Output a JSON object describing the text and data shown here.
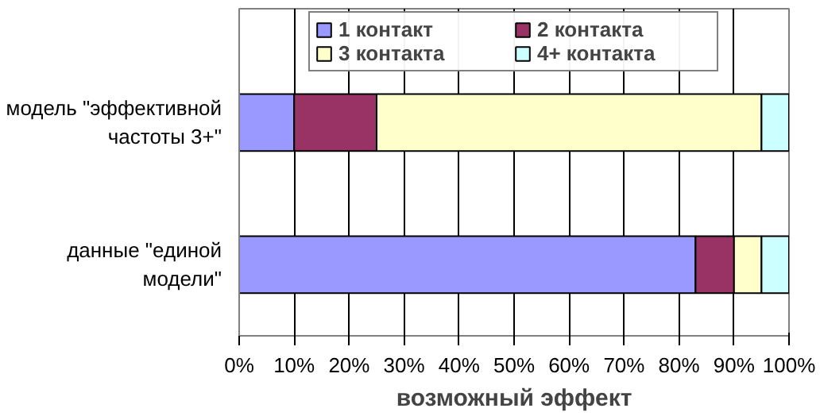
{
  "chart_data": {
    "type": "bar",
    "orientation": "horizontal",
    "stacked": true,
    "categories": [
      "модель \"эффективной частоты 3+\"",
      "данные \"единой модели\""
    ],
    "series": [
      {
        "name": "1 контакт",
        "color": "#9999ff",
        "values": [
          10,
          83
        ]
      },
      {
        "name": "2 контакта",
        "color": "#993366",
        "values": [
          15,
          7
        ]
      },
      {
        "name": "3 контакта",
        "color": "#ffffcc",
        "values": [
          70,
          5
        ]
      },
      {
        "name": "4+ контакта",
        "color": "#ccffff",
        "values": [
          5,
          5
        ]
      }
    ],
    "xlabel": "возможный эффект",
    "xlim": [
      0,
      100
    ],
    "xticks": [
      {
        "value": 0,
        "label": "0%"
      },
      {
        "value": 10,
        "label": "10%"
      },
      {
        "value": 20,
        "label": "20%"
      },
      {
        "value": 30,
        "label": "30%"
      },
      {
        "value": 40,
        "label": "40%"
      },
      {
        "value": 50,
        "label": "50%"
      },
      {
        "value": 60,
        "label": "60%"
      },
      {
        "value": 70,
        "label": "70%"
      },
      {
        "value": 80,
        "label": "80%"
      },
      {
        "value": 90,
        "label": "90%"
      },
      {
        "value": 100,
        "label": "100%"
      }
    ],
    "grid": "x",
    "legend": "top"
  }
}
